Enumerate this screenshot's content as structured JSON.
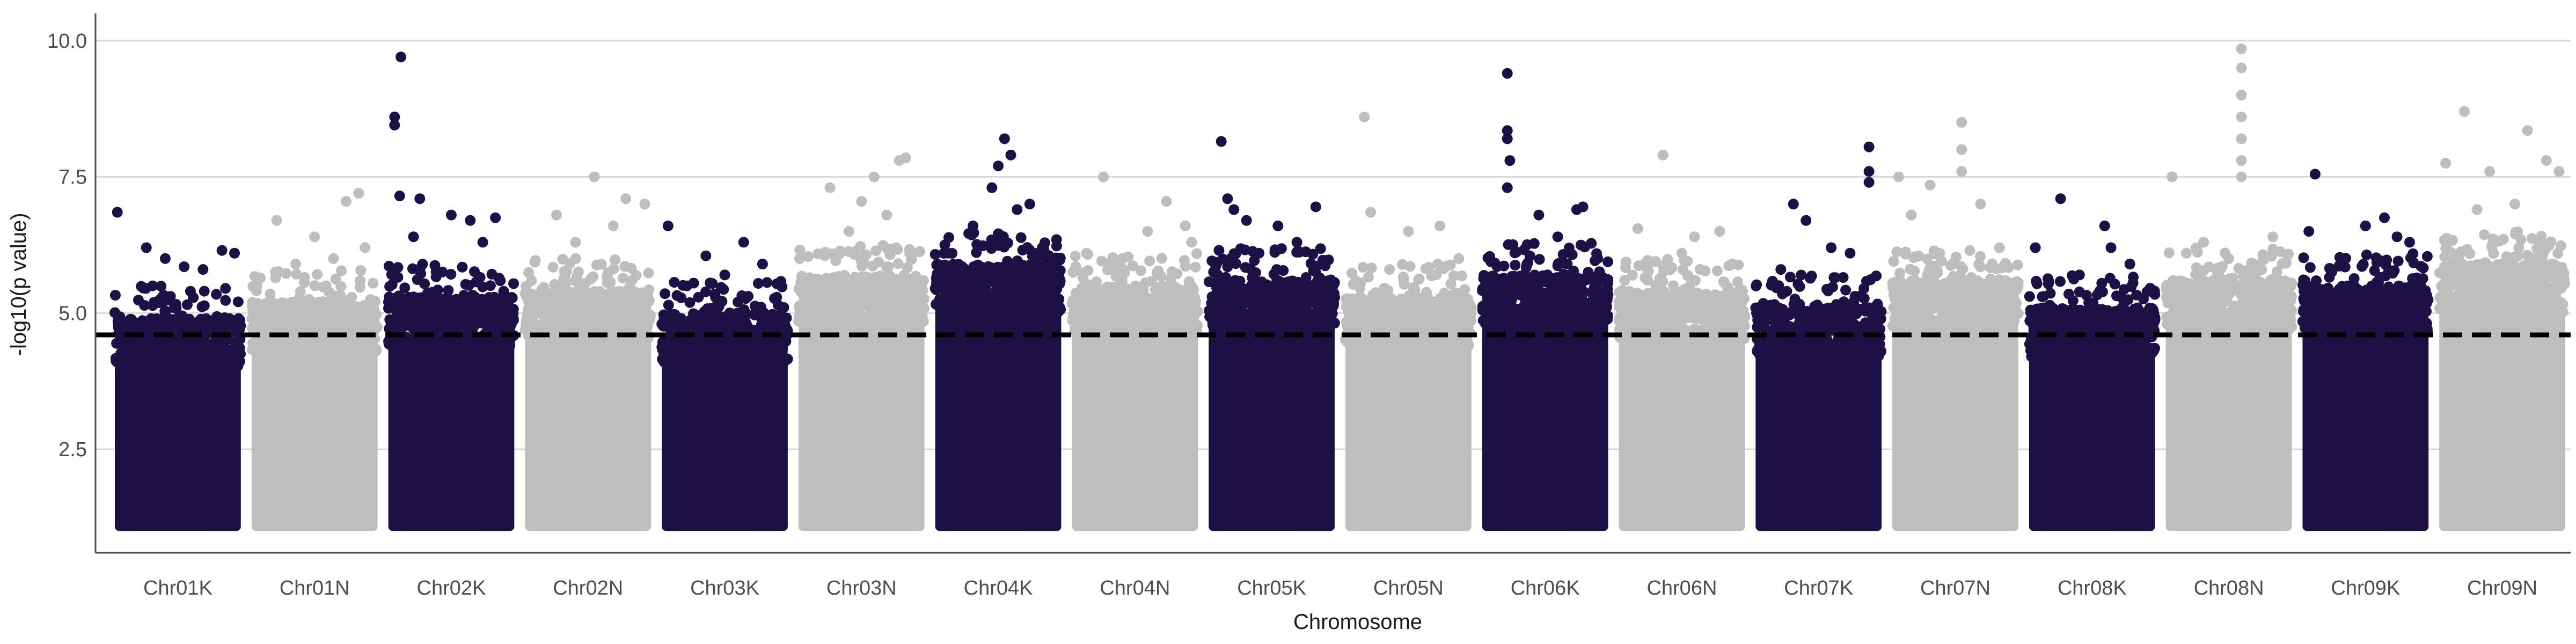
{
  "chart_data": {
    "type": "scatter",
    "subtype": "manhattan",
    "title": "",
    "xlabel": "Chromosome",
    "ylabel": "-log10(p value)",
    "ylim": [
      0.6,
      10.5
    ],
    "yticks": [
      2.5,
      5.0,
      7.5,
      10.0
    ],
    "ytick_labels": [
      "2.5",
      "5.0",
      "7.5",
      "10.0"
    ],
    "grid": "horizontal major lines only",
    "legend": "none",
    "threshold": {
      "value": 4.6,
      "style": "dashed",
      "color": "#000000"
    },
    "colors": {
      "odd": "#1c1044",
      "even": "#bebebe",
      "grid": "#d9d9d9",
      "axis": "#4d4d4d"
    },
    "min_plotted_value": 1.0,
    "chromosomes": [
      {
        "name": "Chr01K",
        "color": "#1c1044",
        "dense_top": 4.6,
        "top_points": [
          [
            0.02,
            6.85
          ],
          [
            0.25,
            6.2
          ],
          [
            0.4,
            6.0
          ],
          [
            0.55,
            5.85
          ],
          [
            0.7,
            5.8
          ],
          [
            0.85,
            6.15
          ],
          [
            0.95,
            6.1
          ],
          [
            0.3,
            5.5
          ],
          [
            0.6,
            5.4
          ]
        ]
      },
      {
        "name": "Chr01N",
        "color": "#bebebe",
        "dense_top": 4.9,
        "top_points": [
          [
            0.2,
            6.7
          ],
          [
            0.5,
            6.4
          ],
          [
            0.75,
            7.05
          ],
          [
            0.85,
            7.2
          ],
          [
            0.9,
            6.2
          ],
          [
            0.35,
            5.9
          ],
          [
            0.65,
            6.0
          ]
        ]
      },
      {
        "name": "Chr02K",
        "color": "#1c1044",
        "dense_top": 5.0,
        "top_points": [
          [
            0.1,
            9.7
          ],
          [
            0.05,
            8.6
          ],
          [
            0.05,
            8.45
          ],
          [
            0.09,
            7.15
          ],
          [
            0.25,
            7.1
          ],
          [
            0.5,
            6.8
          ],
          [
            0.65,
            6.7
          ],
          [
            0.85,
            6.75
          ],
          [
            0.2,
            6.4
          ],
          [
            0.75,
            6.3
          ]
        ]
      },
      {
        "name": "Chr02N",
        "color": "#bebebe",
        "dense_top": 5.1,
        "top_points": [
          [
            0.25,
            6.8
          ],
          [
            0.55,
            7.5
          ],
          [
            0.8,
            7.1
          ],
          [
            0.95,
            7.0
          ],
          [
            0.4,
            6.3
          ],
          [
            0.7,
            6.6
          ]
        ]
      },
      {
        "name": "Chr03K",
        "color": "#1c1044",
        "dense_top": 4.7,
        "top_points": [
          [
            0.05,
            6.6
          ],
          [
            0.35,
            6.05
          ],
          [
            0.65,
            6.3
          ],
          [
            0.8,
            5.9
          ],
          [
            0.2,
            5.5
          ],
          [
            0.5,
            5.7
          ]
        ]
      },
      {
        "name": "Chr03N",
        "color": "#bebebe",
        "dense_top": 5.4,
        "top_points": [
          [
            0.25,
            7.3
          ],
          [
            0.5,
            7.05
          ],
          [
            0.6,
            7.5
          ],
          [
            0.8,
            7.8
          ],
          [
            0.85,
            7.85
          ],
          [
            0.4,
            6.5
          ],
          [
            0.7,
            6.8
          ]
        ]
      },
      {
        "name": "Chr04K",
        "color": "#1c1044",
        "dense_top": 5.6,
        "top_points": [
          [
            0.5,
            7.7
          ],
          [
            0.55,
            8.2
          ],
          [
            0.6,
            7.9
          ],
          [
            0.45,
            7.3
          ],
          [
            0.65,
            6.9
          ],
          [
            0.75,
            7.0
          ],
          [
            0.3,
            6.6
          ],
          [
            0.85,
            6.2
          ]
        ]
      },
      {
        "name": "Chr04N",
        "color": "#bebebe",
        "dense_top": 5.2,
        "top_points": [
          [
            0.25,
            7.5
          ],
          [
            0.6,
            6.5
          ],
          [
            0.75,
            7.05
          ],
          [
            0.9,
            6.6
          ],
          [
            0.4,
            6.0
          ],
          [
            0.95,
            6.3
          ]
        ]
      },
      {
        "name": "Chr05K",
        "color": "#1c1044",
        "dense_top": 5.3,
        "top_points": [
          [
            0.1,
            8.15
          ],
          [
            0.15,
            7.1
          ],
          [
            0.2,
            6.9
          ],
          [
            0.3,
            6.7
          ],
          [
            0.55,
            6.6
          ],
          [
            0.7,
            6.3
          ],
          [
            0.85,
            6.95
          ],
          [
            0.4,
            6.1
          ]
        ]
      },
      {
        "name": "Chr05N",
        "color": "#bebebe",
        "dense_top": 5.0,
        "top_points": [
          [
            0.15,
            8.6
          ],
          [
            0.2,
            6.85
          ],
          [
            0.5,
            6.5
          ],
          [
            0.75,
            6.6
          ],
          [
            0.9,
            6.0
          ],
          [
            0.35,
            5.8
          ]
        ]
      },
      {
        "name": "Chr06K",
        "color": "#1c1044",
        "dense_top": 5.4,
        "top_points": [
          [
            0.2,
            9.4
          ],
          [
            0.2,
            8.35
          ],
          [
            0.2,
            8.2
          ],
          [
            0.22,
            7.8
          ],
          [
            0.2,
            7.3
          ],
          [
            0.45,
            6.8
          ],
          [
            0.75,
            6.9
          ],
          [
            0.8,
            6.95
          ],
          [
            0.6,
            6.4
          ]
        ]
      },
      {
        "name": "Chr06N",
        "color": "#bebebe",
        "dense_top": 5.1,
        "top_points": [
          [
            0.35,
            7.9
          ],
          [
            0.15,
            6.55
          ],
          [
            0.6,
            6.4
          ],
          [
            0.8,
            6.5
          ],
          [
            0.9,
            5.9
          ],
          [
            0.5,
            6.1
          ]
        ]
      },
      {
        "name": "Chr07K",
        "color": "#1c1044",
        "dense_top": 4.8,
        "top_points": [
          [
            0.9,
            8.05
          ],
          [
            0.9,
            7.6
          ],
          [
            0.9,
            7.4
          ],
          [
            0.3,
            7.0
          ],
          [
            0.4,
            6.7
          ],
          [
            0.6,
            6.2
          ],
          [
            0.75,
            6.1
          ],
          [
            0.2,
            5.8
          ]
        ]
      },
      {
        "name": "Chr07N",
        "color": "#bebebe",
        "dense_top": 5.3,
        "top_points": [
          [
            0.55,
            8.5
          ],
          [
            0.55,
            8.0
          ],
          [
            0.55,
            7.6
          ],
          [
            0.05,
            7.5
          ],
          [
            0.3,
            7.35
          ],
          [
            0.7,
            7.0
          ],
          [
            0.85,
            6.2
          ],
          [
            0.15,
            6.8
          ]
        ]
      },
      {
        "name": "Chr08K",
        "color": "#1c1044",
        "dense_top": 4.8,
        "top_points": [
          [
            0.25,
            7.1
          ],
          [
            0.05,
            6.2
          ],
          [
            0.6,
            6.6
          ],
          [
            0.65,
            6.2
          ],
          [
            0.8,
            5.9
          ],
          [
            0.4,
            5.7
          ]
        ]
      },
      {
        "name": "Chr08N",
        "color": "#bebebe",
        "dense_top": 5.3,
        "top_points": [
          [
            0.6,
            9.85
          ],
          [
            0.6,
            9.5
          ],
          [
            0.6,
            9.0
          ],
          [
            0.6,
            8.6
          ],
          [
            0.6,
            8.2
          ],
          [
            0.6,
            7.8
          ],
          [
            0.6,
            7.5
          ],
          [
            0.05,
            7.5
          ],
          [
            0.3,
            6.3
          ],
          [
            0.85,
            6.4
          ]
        ]
      },
      {
        "name": "Chr09K",
        "color": "#1c1044",
        "dense_top": 5.2,
        "top_points": [
          [
            0.05,
            6.5
          ],
          [
            0.1,
            7.55
          ],
          [
            0.5,
            6.6
          ],
          [
            0.65,
            6.75
          ],
          [
            0.75,
            6.4
          ],
          [
            0.85,
            6.3
          ],
          [
            0.3,
            5.9
          ]
        ]
      },
      {
        "name": "Chr09N",
        "color": "#bebebe",
        "dense_top": 5.6,
        "top_points": [
          [
            0.2,
            8.7
          ],
          [
            0.05,
            7.75
          ],
          [
            0.4,
            7.6
          ],
          [
            0.7,
            8.35
          ],
          [
            0.85,
            7.8
          ],
          [
            0.95,
            7.6
          ],
          [
            0.6,
            7.0
          ],
          [
            0.3,
            6.9
          ]
        ]
      }
    ]
  }
}
